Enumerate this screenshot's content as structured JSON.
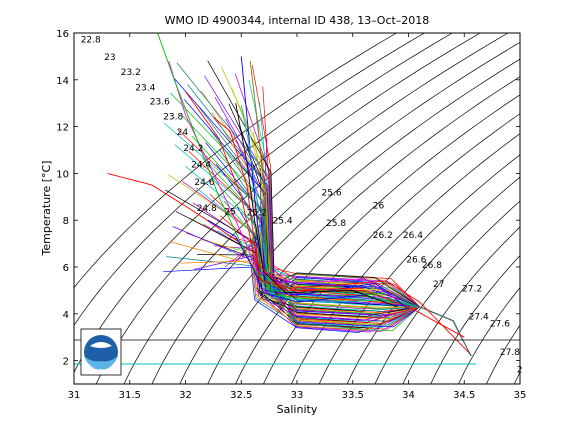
{
  "chart_data": {
    "type": "line",
    "title": "WMO ID 4900344, internal ID 438, 13–Oct–2018",
    "xlabel": "Salinity",
    "ylabel": "Temperature [°C]",
    "xlim": [
      31,
      35
    ],
    "ylim": [
      1,
      16
    ],
    "x_ticks": [
      "31",
      "31.5",
      "32",
      "32.5",
      "33",
      "33.5",
      "34",
      "34.5",
      "35"
    ],
    "y_ticks": [
      "2",
      "4",
      "6",
      "8",
      "10",
      "12",
      "14",
      "16"
    ],
    "grid": false,
    "density_labels": [
      {
        "text": "22.8",
        "s": 31.06,
        "t": 15.6
      },
      {
        "text": "23",
        "s": 31.27,
        "t": 14.85
      },
      {
        "text": "23.2",
        "s": 31.42,
        "t": 14.2
      },
      {
        "text": "23.4",
        "s": 31.55,
        "t": 13.55
      },
      {
        "text": "23.6",
        "s": 31.68,
        "t": 12.95
      },
      {
        "text": "23.8",
        "s": 31.8,
        "t": 12.3
      },
      {
        "text": "24",
        "s": 31.92,
        "t": 11.65
      },
      {
        "text": "24.2",
        "s": 31.98,
        "t": 10.95
      },
      {
        "text": "24.4",
        "s": 32.05,
        "t": 10.25
      },
      {
        "text": "24.6",
        "s": 32.08,
        "t": 9.5
      },
      {
        "text": "24.8",
        "s": 32.1,
        "t": 8.4
      },
      {
        "text": "25",
        "s": 32.35,
        "t": 8.25
      },
      {
        "text": "25.2",
        "s": 32.55,
        "t": 8.2
      },
      {
        "text": "25.4",
        "s": 32.78,
        "t": 7.85
      },
      {
        "text": "25.6",
        "s": 33.22,
        "t": 9.05
      },
      {
        "text": "25.8",
        "s": 33.26,
        "t": 7.75
      },
      {
        "text": "26",
        "s": 33.68,
        "t": 8.5
      },
      {
        "text": "26.2",
        "s": 33.68,
        "t": 7.25
      },
      {
        "text": "26.4",
        "s": 33.95,
        "t": 7.25
      },
      {
        "text": "26.6",
        "s": 33.98,
        "t": 6.2
      },
      {
        "text": "26.8",
        "s": 34.12,
        "t": 5.95
      },
      {
        "text": "27",
        "s": 34.22,
        "t": 5.15
      },
      {
        "text": "27.2",
        "s": 34.48,
        "t": 4.95
      },
      {
        "text": "27.4",
        "s": 34.54,
        "t": 3.75
      },
      {
        "text": "27.6",
        "s": 34.73,
        "t": 3.45
      },
      {
        "text": "27.8",
        "s": 34.82,
        "t": 2.25
      },
      {
        "text": "2",
        "s": 34.97,
        "t": 1.5
      }
    ],
    "profile_count": 80,
    "series": [
      {
        "color": "#ff0000",
        "values": [
          [
            32.25,
            12.4
          ],
          [
            32.4,
            11.8
          ],
          [
            32.55,
            9.5
          ],
          [
            32.62,
            7.0
          ],
          [
            32.68,
            5.4
          ],
          [
            32.85,
            5.1
          ],
          [
            33.3,
            5.2
          ],
          [
            33.8,
            5.4
          ],
          [
            34.1,
            4.5
          ],
          [
            34.55,
            2.3
          ]
        ]
      },
      {
        "color": "#ff0000",
        "values": [
          [
            31.3,
            10.0
          ],
          [
            31.7,
            9.5
          ],
          [
            32.1,
            8.3
          ],
          [
            32.5,
            7.0
          ],
          [
            32.65,
            5.5
          ],
          [
            33.0,
            5.0
          ],
          [
            33.6,
            5.0
          ],
          [
            34.0,
            4.3
          ],
          [
            34.5,
            3.0
          ]
        ]
      },
      {
        "color": "#0000ff",
        "values": [
          [
            32.5,
            15.0
          ],
          [
            32.55,
            12.5
          ],
          [
            32.62,
            9.0
          ],
          [
            32.68,
            6.5
          ],
          [
            32.72,
            5.0
          ],
          [
            33.0,
            4.8
          ],
          [
            33.7,
            5.3
          ],
          [
            34.0,
            4.2
          ]
        ]
      },
      {
        "color": "#ff00ff",
        "values": [
          [
            31.85,
            14.8
          ],
          [
            32.0,
            12.5
          ],
          [
            32.2,
            10.5
          ],
          [
            32.45,
            8.0
          ],
          [
            32.65,
            5.8
          ],
          [
            33.0,
            5.3
          ],
          [
            33.6,
            5.5
          ],
          [
            33.9,
            4.6
          ]
        ]
      },
      {
        "color": "#00bf00",
        "values": [
          [
            31.75,
            16.0
          ],
          [
            31.9,
            14.0
          ],
          [
            32.1,
            11.5
          ],
          [
            32.3,
            9.0
          ],
          [
            32.6,
            6.0
          ],
          [
            32.8,
            4.8
          ],
          [
            33.2,
            4.6
          ],
          [
            33.8,
            4.9
          ]
        ]
      },
      {
        "color": "#7f7f00",
        "values": [
          [
            32.58,
            14.8
          ],
          [
            32.65,
            12.0
          ],
          [
            32.7,
            9.5
          ],
          [
            32.74,
            7.0
          ],
          [
            32.78,
            5.2
          ],
          [
            33.2,
            5.0
          ],
          [
            33.7,
            4.9
          ]
        ]
      },
      {
        "color": "#00bfbf",
        "values": [
          [
            32.5,
            12.9
          ],
          [
            32.58,
            11.0
          ],
          [
            32.65,
            8.5
          ],
          [
            32.72,
            6.2
          ],
          [
            32.8,
            4.7
          ],
          [
            33.3,
            4.5
          ],
          [
            33.8,
            4.6
          ]
        ]
      },
      {
        "color": "#000000",
        "values": [
          [
            32.45,
            13.0
          ],
          [
            32.55,
            10.5
          ],
          [
            32.62,
            8.0
          ],
          [
            32.7,
            5.8
          ],
          [
            32.9,
            4.9
          ],
          [
            33.5,
            5.0
          ],
          [
            33.9,
            4.3
          ]
        ]
      },
      {
        "color": "#ff0000",
        "values": [
          [
            32.0,
            13.5
          ],
          [
            32.3,
            11.5
          ],
          [
            32.5,
            9.0
          ],
          [
            32.63,
            6.2
          ],
          [
            32.9,
            5.0
          ],
          [
            33.6,
            5.1
          ]
        ]
      },
      {
        "color": "#0000ff",
        "values": [
          [
            32.2,
            8.0
          ],
          [
            32.45,
            7.3
          ],
          [
            32.6,
            6.0
          ],
          [
            32.7,
            4.9
          ],
          [
            33.0,
            4.5
          ],
          [
            33.6,
            4.8
          ]
        ]
      }
    ]
  }
}
